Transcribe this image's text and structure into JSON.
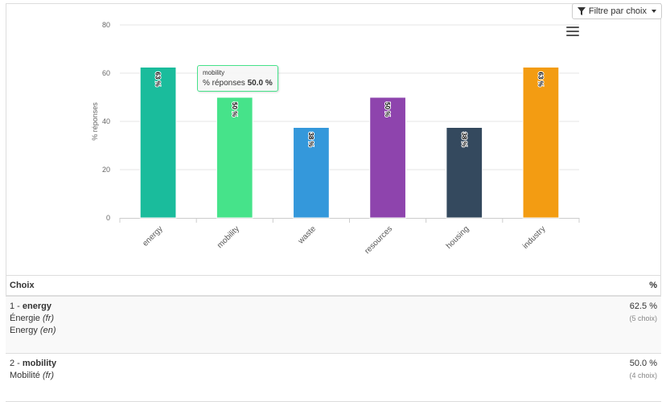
{
  "filter": {
    "label": "Filtre par choix",
    "icon": "funnel-icon"
  },
  "chart_data": {
    "type": "bar",
    "categories": [
      "energy",
      "mobility",
      "waste",
      "resources",
      "housing",
      "industry"
    ],
    "values": [
      62.5,
      50.0,
      37.5,
      50.0,
      37.5,
      62.5
    ],
    "data_labels": [
      "63 %",
      "50 %",
      "38 %",
      "50 %",
      "38 %",
      "63 %"
    ],
    "colors": [
      "#1abc9c",
      "#46e38a",
      "#3498db",
      "#8e44ad",
      "#34495e",
      "#f39c12"
    ],
    "ylabel": "% réponses",
    "xlabel": "",
    "ylim": [
      0,
      80
    ],
    "yticks": [
      0,
      20,
      40,
      60,
      80
    ],
    "grid": true,
    "legend": "none"
  },
  "tooltip": {
    "category": "mobility",
    "label": "% réponses",
    "value": "50.0 %"
  },
  "table": {
    "headers": {
      "choice": "Choix",
      "percent": "%"
    },
    "rows": [
      {
        "num": "1 - ",
        "name": "energy",
        "translations": [
          {
            "text": "Énergie",
            "lang": "(fr)"
          },
          {
            "text": "Energy",
            "lang": "(en)"
          }
        ],
        "percent": "62.5 %",
        "count": "(5 choix)"
      },
      {
        "num": "2 - ",
        "name": "mobility",
        "translations": [
          {
            "text": "Mobilité",
            "lang": "(fr)"
          }
        ],
        "percent": "50.0 %",
        "count": "(4 choix)"
      }
    ]
  }
}
